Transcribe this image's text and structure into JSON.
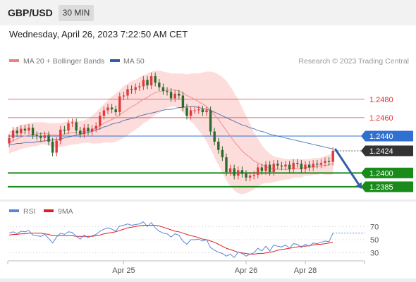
{
  "header": {
    "symbol": "GBP/USD",
    "timeframe": "30 MIN",
    "datetime": "Wednesday, April 26, 2023 7:22:50 AM CET"
  },
  "chart_data": [
    {
      "type": "candlestick",
      "legend": [
        {
          "label": "MA 20 + Bollinger Bands",
          "color": "#f08080"
        },
        {
          "label": "MA 50",
          "color": "#2f5fa6"
        }
      ],
      "legend_placement": "top-left",
      "credit": "Research © 2023 Trading Central",
      "ylim": [
        1.2375,
        1.2515
      ],
      "levels": [
        {
          "value": 1.248,
          "label": "1.2480",
          "kind": "resistance",
          "color": "#e03030"
        },
        {
          "value": 1.246,
          "label": "1.2460",
          "kind": "resistance",
          "color": "#e03030"
        },
        {
          "value": 1.244,
          "label": "1.2440",
          "kind": "pivot",
          "color": "#3070d0"
        },
        {
          "value": 1.24,
          "label": "1.2400",
          "kind": "support",
          "color": "#1a8a1a"
        },
        {
          "value": 1.2385,
          "label": "1.2385",
          "kind": "support",
          "color": "#1a8a1a"
        }
      ],
      "last_price": {
        "value": 1.2424,
        "label": "1.2424",
        "color": "#333333"
      },
      "forecast_arrow": {
        "from": 1.2424,
        "to": 1.2385,
        "color": "#2f5fa6"
      },
      "close": [
        1.2438,
        1.2446,
        1.2443,
        1.2448,
        1.2446,
        1.2449,
        1.2441,
        1.244,
        1.2438,
        1.2441,
        1.2434,
        1.2422,
        1.2435,
        1.2447,
        1.2446,
        1.2454,
        1.2455,
        1.2446,
        1.2442,
        1.2449,
        1.2445,
        1.2448,
        1.2451,
        1.2462,
        1.2468,
        1.2471,
        1.2469,
        1.2466,
        1.2483,
        1.2484,
        1.2491,
        1.249,
        1.2493,
        1.2494,
        1.2501,
        1.2495,
        1.2505,
        1.2498,
        1.2493,
        1.2489,
        1.2488,
        1.2481,
        1.2486,
        1.2484,
        1.2471,
        1.2462,
        1.2468,
        1.2468,
        1.2469,
        1.2466,
        1.2468,
        1.2445,
        1.2434,
        1.2425,
        1.2417,
        1.2401,
        1.2405,
        1.2397,
        1.2403,
        1.2399,
        1.2395,
        1.2397,
        1.2398,
        1.2406,
        1.2402,
        1.2409,
        1.2401,
        1.241,
        1.2408,
        1.2407,
        1.2409,
        1.2404,
        1.2411,
        1.241,
        1.2404,
        1.2409,
        1.2406,
        1.241,
        1.2409,
        1.2411,
        1.2413,
        1.2412,
        1.2424
      ],
      "ma20": [
        1.2433,
        1.2435,
        1.2437,
        1.2439,
        1.244,
        1.2441,
        1.2442,
        1.2442,
        1.2443,
        1.2443,
        1.2442,
        1.2441,
        1.2441,
        1.2441,
        1.2442,
        1.2443,
        1.2444,
        1.2444,
        1.2444,
        1.2445,
        1.2446,
        1.2447,
        1.2449,
        1.2451,
        1.2454,
        1.2456,
        1.2458,
        1.246,
        1.2463,
        1.2466,
        1.2469,
        1.2472,
        1.2474,
        1.2477,
        1.248,
        1.2482,
        1.2485,
        1.2487,
        1.2488,
        1.2489,
        1.249,
        1.249,
        1.249,
        1.2489,
        1.2487,
        1.2484,
        1.2482,
        1.248,
        1.2477,
        1.2475,
        1.2472,
        1.2468,
        1.2463,
        1.2458,
        1.2452,
        1.2446,
        1.244,
        1.2434,
        1.2429,
        1.2424,
        1.242,
        1.2417,
        1.2413,
        1.2411,
        1.2409,
        1.2407,
        1.2405,
        1.2404,
        1.2404,
        1.2404,
        1.2404,
        1.2404,
        1.2405,
        1.2405,
        1.2405,
        1.2406,
        1.2406,
        1.2407,
        1.2407,
        1.2408,
        1.2408,
        1.2409,
        1.241
      ],
      "bb_width": [
        0.0012,
        0.0012,
        0.0013,
        0.0013,
        0.0013,
        0.0013,
        0.0013,
        0.0013,
        0.0012,
        0.0012,
        0.0012,
        0.0013,
        0.0013,
        0.0013,
        0.0013,
        0.0013,
        0.0013,
        0.0013,
        0.0012,
        0.0012,
        0.0013,
        0.0015,
        0.0017,
        0.0019,
        0.0021,
        0.0023,
        0.0025,
        0.0026,
        0.0027,
        0.0028,
        0.0028,
        0.0028,
        0.0027,
        0.0027,
        0.0026,
        0.0026,
        0.0025,
        0.0024,
        0.0023,
        0.0021,
        0.0019,
        0.0018,
        0.0018,
        0.0019,
        0.0021,
        0.0023,
        0.0026,
        0.0028,
        0.0031,
        0.0034,
        0.0038,
        0.0042,
        0.0046,
        0.0049,
        0.0052,
        0.0054,
        0.0054,
        0.0053,
        0.0051,
        0.0047,
        0.0042,
        0.0037,
        0.0031,
        0.0026,
        0.0021,
        0.0018,
        0.0016,
        0.0014,
        0.0013,
        0.0012,
        0.0011,
        0.0011,
        0.001,
        0.001,
        0.001,
        0.0009,
        0.0009,
        0.0009,
        0.0009,
        0.0009,
        0.001,
        0.0011,
        0.0012
      ],
      "ma50": [
        1.2431,
        1.2431,
        1.2432,
        1.2432,
        1.2433,
        1.2433,
        1.2433,
        1.2434,
        1.2434,
        1.2435,
        1.2435,
        1.2436,
        1.2436,
        1.2437,
        1.2438,
        1.2439,
        1.244,
        1.2441,
        1.2442,
        1.2443,
        1.2444,
        1.2445,
        1.2447,
        1.2448,
        1.245,
        1.2451,
        1.2453,
        1.2454,
        1.2455,
        1.2457,
        1.2458,
        1.2459,
        1.246,
        1.2462,
        1.2463,
        1.2464,
        1.2465,
        1.2466,
        1.2467,
        1.2468,
        1.2469,
        1.2469,
        1.247,
        1.2471,
        1.2471,
        1.2472,
        1.2472,
        1.2472,
        1.2471,
        1.247,
        1.2469,
        1.2468,
        1.2466,
        1.2464,
        1.2462,
        1.246,
        1.2458,
        1.2456,
        1.2454,
        1.2452,
        1.2451,
        1.2449,
        1.2448,
        1.2446,
        1.2445,
        1.2444,
        1.2442,
        1.2441,
        1.244,
        1.2439,
        1.2438,
        1.2437,
        1.2436,
        1.2435,
        1.2434,
        1.2433,
        1.2432,
        1.2431,
        1.243,
        1.2429,
        1.2428,
        1.2427,
        1.2426
      ],
      "x_labels": [
        {
          "label": "Apr 25",
          "index": 29
        },
        {
          "label": "Apr 26",
          "index": 60
        },
        {
          "label": "Apr 28",
          "index": 75
        }
      ]
    },
    {
      "type": "line",
      "legend": [
        {
          "label": "RSI",
          "color": "#5b86d6"
        },
        {
          "label": "9MA",
          "color": "#e02020"
        }
      ],
      "ylim": [
        20,
        80
      ],
      "ticks": [
        {
          "value": 70,
          "label": "70"
        },
        {
          "value": 50,
          "label": "50"
        },
        {
          "value": 30,
          "label": "30"
        }
      ],
      "rsi": [
        60,
        62,
        59,
        63,
        62,
        64,
        57,
        56,
        55,
        58,
        52,
        45,
        54,
        60,
        58,
        62,
        61,
        55,
        51,
        57,
        53,
        56,
        58,
        63,
        66,
        68,
        66,
        63,
        71,
        72,
        74,
        72,
        73,
        74,
        77,
        70,
        76,
        68,
        63,
        60,
        59,
        54,
        59,
        57,
        48,
        43,
        50,
        50,
        51,
        48,
        50,
        38,
        34,
        31,
        29,
        25,
        28,
        23,
        31,
        29,
        25,
        28,
        30,
        37,
        33,
        40,
        33,
        42,
        40,
        39,
        42,
        37,
        44,
        43,
        38,
        43,
        40,
        45,
        44,
        46,
        48,
        47,
        60
      ],
      "ma9": [
        57,
        58,
        58,
        59,
        59,
        60,
        60,
        60,
        60,
        59,
        58,
        56,
        56,
        56,
        56,
        56,
        56,
        55,
        55,
        55,
        55,
        55,
        56,
        57,
        59,
        60,
        61,
        62,
        64,
        66,
        68,
        69,
        70,
        71,
        72,
        72,
        72,
        72,
        71,
        69,
        67,
        65,
        63,
        62,
        60,
        58,
        56,
        55,
        53,
        51,
        50,
        48,
        46,
        43,
        40,
        37,
        35,
        33,
        31,
        30,
        29,
        28,
        28,
        29,
        29,
        30,
        31,
        32,
        34,
        35,
        36,
        37,
        38,
        39,
        40,
        40,
        41,
        42,
        43,
        43,
        44,
        45,
        46
      ]
    }
  ]
}
